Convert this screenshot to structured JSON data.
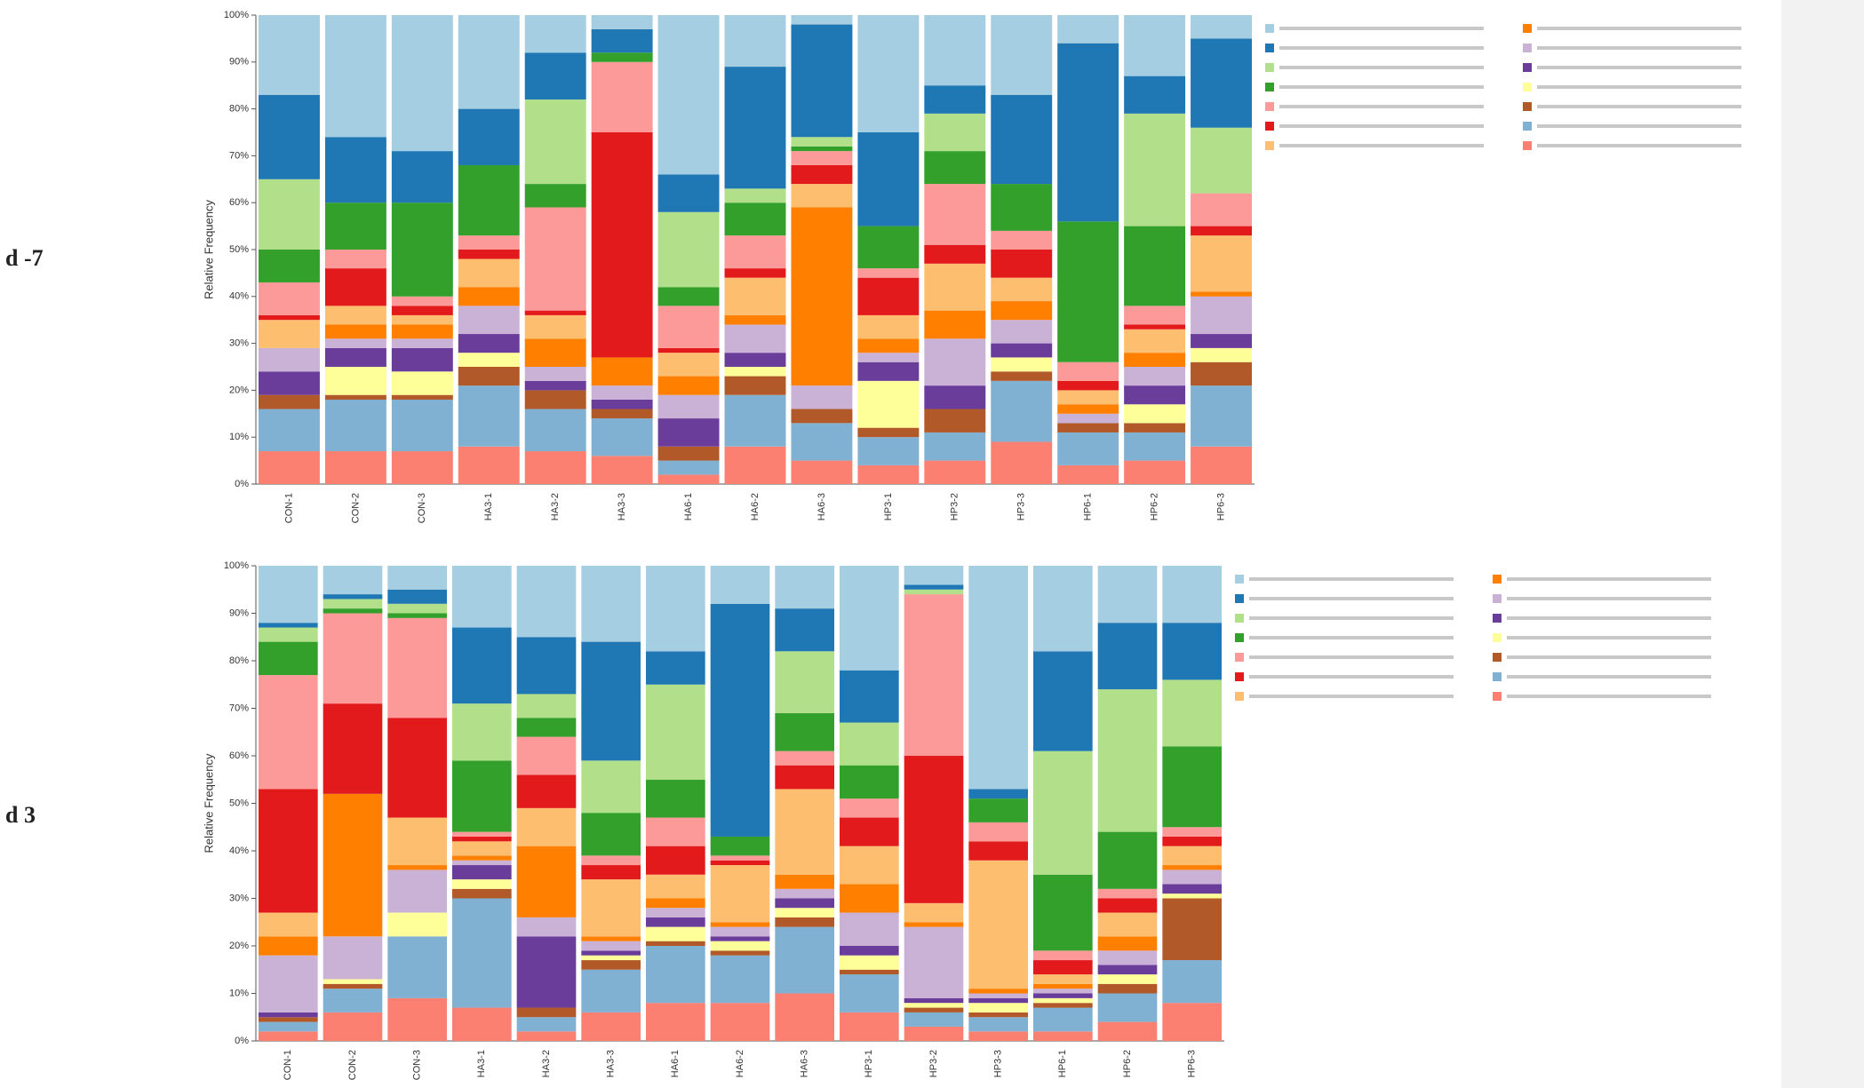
{
  "charts": [
    {
      "chart_data": {
        "type": "stacked_bar",
        "title": "d -7",
        "y_label": "Relative Frequency",
        "categories": [
          "CON-1",
          "CON-2",
          "CON-3",
          "HA3-1",
          "HA3-2",
          "HA3-3",
          "HA6-1",
          "HA6-2",
          "HA6-3",
          "HP3-1",
          "HP3-2",
          "HP3-3",
          "HP6-1",
          "HP6-2",
          "HP6-3"
        ],
        "ylim": [
          0,
          100
        ],
        "yticks": [
          {
            "value": 0,
            "label": "0%"
          },
          {
            "value": 10,
            "label": "10%"
          },
          {
            "value": 20,
            "label": "20%"
          },
          {
            "value": 30,
            "label": "30%"
          },
          {
            "value": 40,
            "label": "40%"
          },
          {
            "value": 50,
            "label": "50%"
          },
          {
            "value": 60,
            "label": "60%"
          },
          {
            "value": 70,
            "label": "70%"
          },
          {
            "value": 80,
            "label": "80%"
          },
          {
            "value": 90,
            "label": "90%"
          },
          {
            "value": 100,
            "label": "100%"
          }
        ],
        "series": [
          {
            "color": "#a6cee3",
            "values": [
              17,
              26,
              29,
              20,
              8,
              3,
              34,
              11,
              2,
              25,
              15,
              17,
              6,
              13,
              5
            ]
          },
          {
            "color": "#1f78b4",
            "values": [
              18,
              14,
              11,
              12,
              10,
              5,
              8,
              26,
              24,
              20,
              6,
              19,
              38,
              8,
              19
            ]
          },
          {
            "color": "#b2df8a",
            "values": [
              15,
              0,
              0,
              0,
              18,
              0,
              16,
              3,
              2,
              0,
              8,
              0,
              0,
              24,
              14
            ]
          },
          {
            "color": "#33a02c",
            "values": [
              7,
              10,
              20,
              15,
              5,
              2,
              4,
              7,
              1,
              9,
              7,
              10,
              30,
              17,
              0
            ]
          },
          {
            "color": "#fb9a99",
            "values": [
              7,
              4,
              2,
              3,
              22,
              15,
              9,
              7,
              3,
              2,
              13,
              4,
              4,
              4,
              7
            ]
          },
          {
            "color": "#e31a1c",
            "values": [
              1,
              8,
              2,
              2,
              1,
              48,
              1,
              2,
              4,
              8,
              4,
              6,
              2,
              1,
              2
            ]
          },
          {
            "color": "#fdbf6f",
            "values": [
              6,
              4,
              2,
              6,
              5,
              0,
              5,
              8,
              5,
              5,
              10,
              5,
              3,
              5,
              12
            ]
          },
          {
            "color": "#ff7f00",
            "values": [
              0,
              3,
              3,
              4,
              6,
              6,
              4,
              2,
              38,
              3,
              6,
              4,
              2,
              3,
              1
            ]
          },
          {
            "color": "#cab2d6",
            "values": [
              5,
              2,
              2,
              6,
              3,
              3,
              5,
              6,
              5,
              2,
              10,
              5,
              2,
              4,
              8
            ]
          },
          {
            "color": "#6a3d9a",
            "values": [
              5,
              4,
              5,
              4,
              2,
              2,
              6,
              3,
              0,
              4,
              5,
              3,
              0,
              4,
              3
            ]
          },
          {
            "color": "#ffff99",
            "values": [
              0,
              6,
              5,
              3,
              0,
              0,
              0,
              2,
              0,
              10,
              0,
              3,
              0,
              4,
              3
            ]
          },
          {
            "color": "#b15928",
            "values": [
              3,
              1,
              1,
              4,
              4,
              2,
              3,
              4,
              3,
              2,
              5,
              2,
              2,
              2,
              5
            ]
          },
          {
            "color": "#80b1d3",
            "values": [
              9,
              11,
              11,
              13,
              9,
              8,
              3,
              11,
              8,
              6,
              6,
              13,
              7,
              6,
              13
            ]
          },
          {
            "color": "#fb8072",
            "values": [
              7,
              7,
              7,
              8,
              7,
              6,
              2,
              8,
              5,
              4,
              5,
              9,
              4,
              5,
              8
            ]
          }
        ]
      }
    },
    {
      "chart_data": {
        "type": "stacked_bar",
        "title": "d 3",
        "y_label": "Relative Frequency",
        "categories": [
          "CON-1",
          "CON-2",
          "CON-3",
          "HA3-1",
          "HA3-2",
          "HA3-3",
          "HA6-1",
          "HA6-2",
          "HA6-3",
          "HP3-1",
          "HP3-2",
          "HP3-3",
          "HP6-1",
          "HP6-2",
          "HP6-3"
        ],
        "ylim": [
          0,
          100
        ],
        "yticks": [
          {
            "value": 0,
            "label": "0%"
          },
          {
            "value": 10,
            "label": "10%"
          },
          {
            "value": 20,
            "label": "20%"
          },
          {
            "value": 30,
            "label": "30%"
          },
          {
            "value": 40,
            "label": "40%"
          },
          {
            "value": 50,
            "label": "50%"
          },
          {
            "value": 60,
            "label": "60%"
          },
          {
            "value": 70,
            "label": "70%"
          },
          {
            "value": 80,
            "label": "80%"
          },
          {
            "value": 90,
            "label": "90%"
          },
          {
            "value": 100,
            "label": "100%"
          }
        ],
        "series": [
          {
            "color": "#a6cee3",
            "values": [
              12,
              6,
              5,
              13,
              15,
              16,
              18,
              8,
              9,
              22,
              4,
              47,
              18,
              12,
              12
            ]
          },
          {
            "color": "#1f78b4",
            "values": [
              1,
              1,
              3,
              16,
              12,
              25,
              7,
              49,
              9,
              11,
              1,
              2,
              21,
              14,
              12
            ]
          },
          {
            "color": "#b2df8a",
            "values": [
              3,
              2,
              2,
              12,
              5,
              11,
              20,
              0,
              13,
              9,
              1,
              0,
              26,
              30,
              14
            ]
          },
          {
            "color": "#33a02c",
            "values": [
              7,
              1,
              1,
              15,
              4,
              9,
              8,
              4,
              8,
              7,
              0,
              5,
              16,
              12,
              17
            ]
          },
          {
            "color": "#fb9a99",
            "values": [
              24,
              19,
              21,
              1,
              8,
              2,
              6,
              1,
              3,
              4,
              34,
              4,
              2,
              2,
              2
            ]
          },
          {
            "color": "#e31a1c",
            "values": [
              26,
              19,
              21,
              1,
              7,
              3,
              6,
              1,
              5,
              6,
              31,
              4,
              3,
              3,
              2
            ]
          },
          {
            "color": "#fdbf6f",
            "values": [
              5,
              0,
              10,
              3,
              8,
              12,
              5,
              12,
              18,
              8,
              4,
              27,
              2,
              5,
              4
            ]
          },
          {
            "color": "#ff7f00",
            "values": [
              4,
              30,
              1,
              1,
              15,
              1,
              2,
              1,
              3,
              6,
              1,
              1,
              1,
              3,
              1
            ]
          },
          {
            "color": "#cab2d6",
            "values": [
              12,
              9,
              9,
              1,
              4,
              2,
              2,
              2,
              2,
              7,
              15,
              1,
              1,
              3,
              3
            ]
          },
          {
            "color": "#6a3d9a",
            "values": [
              1,
              0,
              0,
              3,
              15,
              1,
              2,
              1,
              2,
              2,
              1,
              1,
              1,
              2,
              2
            ]
          },
          {
            "color": "#ffff99",
            "values": [
              0,
              1,
              5,
              2,
              0,
              1,
              3,
              2,
              2,
              3,
              1,
              2,
              1,
              2,
              1
            ]
          },
          {
            "color": "#b15928",
            "values": [
              1,
              1,
              0,
              2,
              2,
              2,
              1,
              1,
              2,
              1,
              1,
              1,
              1,
              2,
              13
            ]
          },
          {
            "color": "#80b1d3",
            "values": [
              2,
              5,
              13,
              23,
              3,
              9,
              12,
              10,
              14,
              8,
              3,
              3,
              5,
              6,
              9
            ]
          },
          {
            "color": "#fb8072",
            "values": [
              2,
              6,
              9,
              7,
              2,
              6,
              8,
              8,
              10,
              6,
              3,
              2,
              2,
              4,
              8
            ]
          }
        ]
      }
    }
  ]
}
